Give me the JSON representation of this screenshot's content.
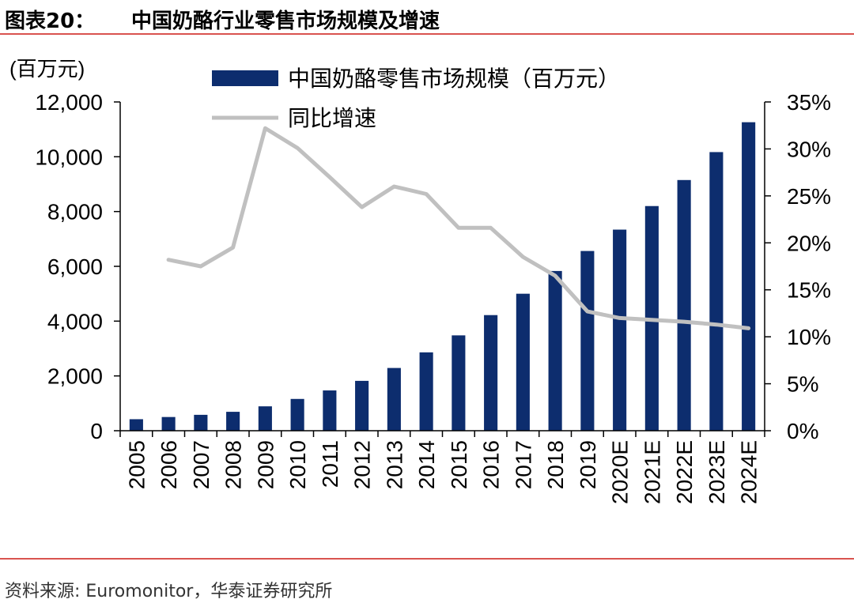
{
  "figure": {
    "label": "图表20：",
    "title": "中国奶酪行业零售市场规模及增速"
  },
  "chart_data": {
    "type": "bar",
    "categories": [
      "2005",
      "2006",
      "2007",
      "2008",
      "2009",
      "2010",
      "2011",
      "2012",
      "2013",
      "2014",
      "2015",
      "2016",
      "2017",
      "2018",
      "2019",
      "2020E",
      "2021E",
      "2022E",
      "2023E",
      "2024E"
    ],
    "series": [
      {
        "name": "中国奶酪零售市场规模（百万元）",
        "type": "bar",
        "axis": "left",
        "color": "#0d2d6e",
        "values": [
          420,
          500,
          580,
          690,
          890,
          1160,
          1470,
          1820,
          2290,
          2860,
          3480,
          4220,
          5000,
          5830,
          6560,
          7340,
          8200,
          9150,
          10170,
          11260
        ]
      },
      {
        "name": "同比增速",
        "type": "line",
        "axis": "right",
        "color": "#c0c0c0",
        "values": [
          null,
          18.2,
          17.5,
          19.5,
          32.2,
          30.1,
          27.0,
          23.8,
          26.0,
          25.2,
          21.6,
          21.6,
          18.5,
          16.5,
          12.7,
          12.0,
          11.8,
          11.6,
          11.3,
          10.9
        ]
      }
    ],
    "ylim_left": [
      0,
      12000
    ],
    "yticks_left": [
      "0",
      "2,000",
      "4,000",
      "6,000",
      "8,000",
      "10,000",
      "12,000"
    ],
    "ylim_right": [
      0,
      35
    ],
    "yticks_right": [
      "0%",
      "5%",
      "10%",
      "15%",
      "20%",
      "25%",
      "30%",
      "35%"
    ],
    "ylabel_left": "(百万元)",
    "legend_position": "top"
  },
  "source": "资料来源: Euromonitor，华泰证券研究所"
}
